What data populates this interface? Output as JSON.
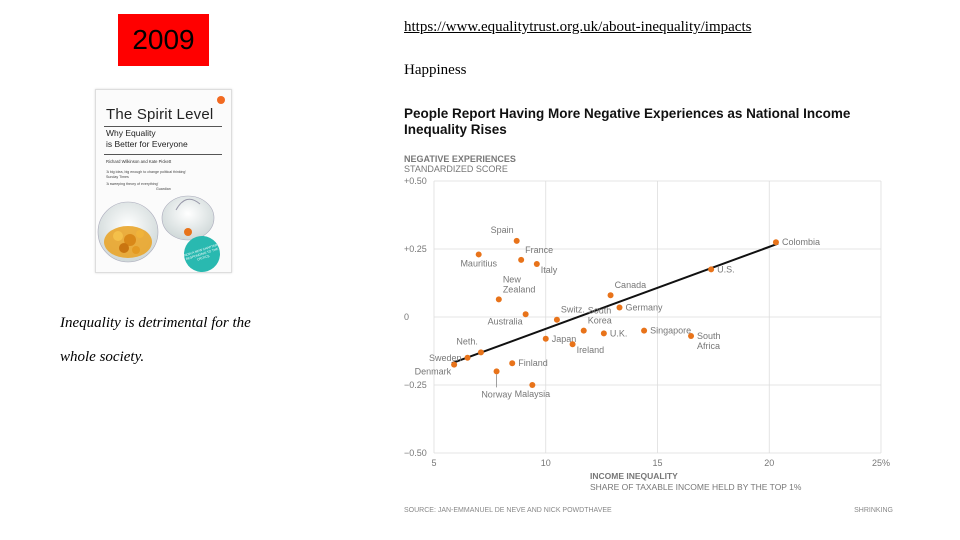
{
  "year": "2009",
  "book": {
    "title": "The Spirit Level",
    "subtitle_line1": "Why Equality",
    "subtitle_line2": "is Better for Everyone",
    "authors": "Richard Wilkinson and Kate Pickett",
    "quote1": "'A big idea, big enough to change political thinking'",
    "quote1_src": "Sunday Times",
    "quote2": "'A sweeping theory of everything'",
    "quote2_src": "Guardian",
    "sticker": "NOW A NEW CHAPTER RESPONDING TO THE CRITICS"
  },
  "caption_line1": "Inequality is detrimental for the",
  "caption_line2": "whole society.",
  "url": "https://www.equalitytrust.org.uk/about-inequality/impacts",
  "section_label": "Happiness",
  "chart_title_line1": "People Report Having More Negative Experiences as National Income",
  "chart_title_line2": "Inequality Rises",
  "colors": {
    "accent": "#e8731a",
    "year_bg": "#ff0000",
    "grid": "#dddddd",
    "axis_text": "#777777"
  },
  "chart_data": {
    "type": "scatter",
    "title": "People Report Having More Negative Experiences as National Income Inequality Rises",
    "ylabel_line1": "NEGATIVE EXPERIENCES",
    "ylabel_line2": "STANDARDIZED SCORE",
    "xlabel_line1": "INCOME INEQUALITY",
    "xlabel_line2": "SHARE OF TAXABLE INCOME HELD BY THE TOP 1%",
    "source": "SOURCE: JAN-EMMANUEL DE NEVE AND NICK POWDTHAVEE",
    "credit": "SHRINKING",
    "xlim": [
      5,
      25
    ],
    "ylim": [
      -0.5,
      0.5
    ],
    "x_ticks": [
      {
        "value": 5,
        "label": "5"
      },
      {
        "value": 10,
        "label": "10"
      },
      {
        "value": 15,
        "label": "15"
      },
      {
        "value": 20,
        "label": "20"
      },
      {
        "value": 25,
        "label": "25%"
      }
    ],
    "y_ticks": [
      {
        "value": 0.5,
        "label": "+0.50"
      },
      {
        "value": 0.25,
        "label": "+0.25"
      },
      {
        "value": 0,
        "label": "0"
      },
      {
        "value": -0.25,
        "label": "−0.25"
      },
      {
        "value": -0.5,
        "label": "−0.50"
      }
    ],
    "trend_line": [
      [
        5.8,
        -0.17
      ],
      [
        20.4,
        0.27
      ]
    ],
    "points": [
      {
        "name": "Spain",
        "x": 8.7,
        "y": 0.28,
        "lines": [
          "Spain"
        ],
        "label_pos": "above-left"
      },
      {
        "name": "Mauritius",
        "x": 7.0,
        "y": 0.23,
        "lines": [
          "Mauritius"
        ],
        "label_pos": "below"
      },
      {
        "name": "France",
        "x": 8.9,
        "y": 0.21,
        "lines": [
          "France"
        ],
        "label_pos": "above-right"
      },
      {
        "name": "Italy",
        "x": 9.6,
        "y": 0.195,
        "lines": [
          "Italy"
        ],
        "label_pos": "below-right"
      },
      {
        "name": "New Zealand",
        "x": 7.9,
        "y": 0.065,
        "lines": [
          "New",
          "Zealand"
        ],
        "label_pos": "above-right"
      },
      {
        "name": "Australia",
        "x": 9.1,
        "y": 0.01,
        "lines": [
          "Australia"
        ],
        "label_pos": "below-left"
      },
      {
        "name": "Switzerland",
        "x": 10.5,
        "y": -0.01,
        "lines": [
          "Switz."
        ],
        "label_pos": "above-right"
      },
      {
        "name": "South Korea",
        "x": 11.7,
        "y": -0.05,
        "lines": [
          "South",
          "Korea"
        ],
        "label_pos": "above-right"
      },
      {
        "name": "Japan",
        "x": 10.0,
        "y": -0.08,
        "lines": [
          "Japan"
        ],
        "label_pos": "right"
      },
      {
        "name": "Ireland",
        "x": 11.2,
        "y": -0.1,
        "lines": [
          "Ireland"
        ],
        "label_pos": "below-right"
      },
      {
        "name": "Canada",
        "x": 12.9,
        "y": 0.08,
        "lines": [
          "Canada"
        ],
        "label_pos": "above-right"
      },
      {
        "name": "Germany",
        "x": 13.3,
        "y": 0.035,
        "lines": [
          "Germany"
        ],
        "label_pos": "right"
      },
      {
        "name": "U.K.",
        "x": 12.6,
        "y": -0.06,
        "lines": [
          "U.K."
        ],
        "label_pos": "right"
      },
      {
        "name": "Singapore",
        "x": 14.4,
        "y": -0.05,
        "lines": [
          "Singapore"
        ],
        "label_pos": "right"
      },
      {
        "name": "South Africa",
        "x": 16.5,
        "y": -0.07,
        "lines": [
          "South",
          "Africa"
        ],
        "label_pos": "right"
      },
      {
        "name": "Colombia",
        "x": 20.3,
        "y": 0.275,
        "lines": [
          "Colombia"
        ],
        "label_pos": "right"
      },
      {
        "name": "U.S.",
        "x": 17.4,
        "y": 0.175,
        "lines": [
          "U.S."
        ],
        "label_pos": "right"
      },
      {
        "name": "Netherlands",
        "x": 7.1,
        "y": -0.13,
        "lines": [
          "Neth."
        ],
        "label_pos": "above-left"
      },
      {
        "name": "Sweden",
        "x": 6.5,
        "y": -0.15,
        "lines": [
          "Sweden"
        ],
        "label_pos": "left"
      },
      {
        "name": "Denmark",
        "x": 5.9,
        "y": -0.175,
        "lines": [
          "Denmark"
        ],
        "label_pos": "below-left"
      },
      {
        "name": "Finland",
        "x": 8.5,
        "y": -0.17,
        "lines": [
          "Finland"
        ],
        "label_pos": "right"
      },
      {
        "name": "Norway",
        "x": 7.8,
        "y": -0.2,
        "lines": [
          "Norway"
        ],
        "label_pos": "below-stem"
      },
      {
        "name": "Malaysia",
        "x": 9.4,
        "y": -0.25,
        "lines": [
          "Malaysia"
        ],
        "label_pos": "below"
      }
    ]
  }
}
